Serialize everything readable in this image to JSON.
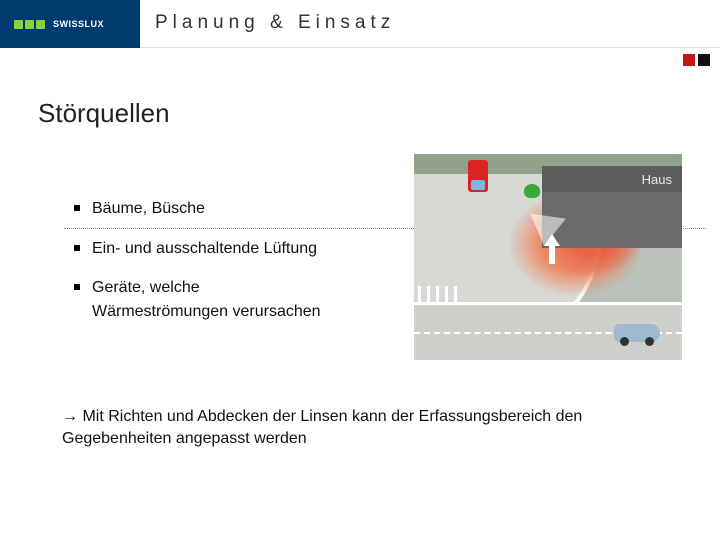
{
  "header": {
    "brand": "SWISSLUX",
    "title": "Planung & Einsatz",
    "squares": [
      "#c01818",
      "#111111"
    ],
    "logo_bg": "#003b6f",
    "dot_color": "#8bcf3f"
  },
  "section_title": "Störquellen",
  "bullets": [
    {
      "text": "Bäume, Büsche"
    },
    {
      "text": "Ein- und ausschaltende Lüftung"
    },
    {
      "text": "Geräte, welche",
      "cont": "Wärmeströmungen verursachen"
    }
  ],
  "footnote": {
    "arrow": "→",
    "text": "Mit Richten und Abdecken der Linsen kann der Erfassungsbereich den Gegebenheiten angepasst werden"
  },
  "illus": {
    "haus_label": "Haus",
    "colors": {
      "bg": "#b9c1b8",
      "grass": "#8fa388",
      "road": "#cfcfcb",
      "heat_inner": "#e8573b",
      "heat_outer": "#f0835c",
      "haus_box": "#5d5d5d",
      "haus_lower": "#6b6b6b",
      "red_car": "#d22222",
      "grey_car": "#9fb8cf",
      "tree": "#3aa83a"
    }
  }
}
